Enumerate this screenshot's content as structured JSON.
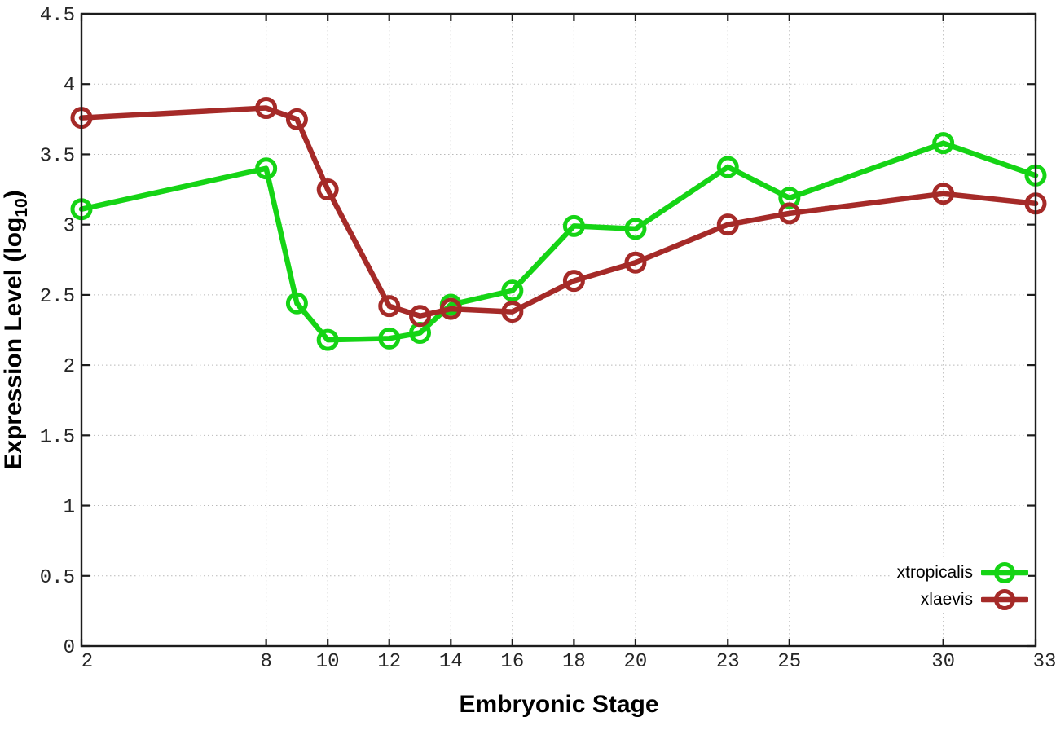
{
  "chart_data": {
    "type": "line",
    "title": "",
    "xlabel": "Embryonic Stage",
    "ylabel": "Expression Level (log10)",
    "ylabel_rich": {
      "pre": "Expression Level (log",
      "sub": "10",
      "post": ")"
    },
    "xlim": [
      2,
      33
    ],
    "ylim": [
      0,
      4.5
    ],
    "x_ticks": [
      2,
      8,
      10,
      12,
      14,
      16,
      18,
      20,
      23,
      25,
      30,
      33
    ],
    "y_ticks": [
      0,
      0.5,
      1,
      1.5,
      2,
      2.5,
      3,
      3.5,
      4,
      4.5
    ],
    "grid": true,
    "grid_style": "dotted",
    "legend_position": "bottom-right",
    "marker": "open-circle",
    "colors": {
      "xtropicalis": "#15d415",
      "xlaevis": "#a52a28"
    },
    "series": [
      {
        "name": "xtropicalis",
        "color": "#15d415",
        "x": [
          2,
          8,
          9,
          10,
          12,
          13,
          14,
          16,
          18,
          20,
          23,
          25,
          30,
          33
        ],
        "y": [
          3.11,
          3.4,
          2.44,
          2.18,
          2.19,
          2.23,
          2.43,
          2.53,
          2.99,
          2.97,
          3.41,
          3.19,
          3.58,
          3.35
        ]
      },
      {
        "name": "xlaevis",
        "color": "#a52a28",
        "x": [
          2,
          8,
          9,
          10,
          12,
          13,
          14,
          16,
          18,
          20,
          23,
          25,
          30,
          33
        ],
        "y": [
          3.76,
          3.83,
          3.75,
          3.25,
          2.42,
          2.35,
          2.4,
          2.38,
          2.6,
          2.73,
          3.0,
          3.08,
          3.22,
          3.15
        ]
      }
    ]
  }
}
